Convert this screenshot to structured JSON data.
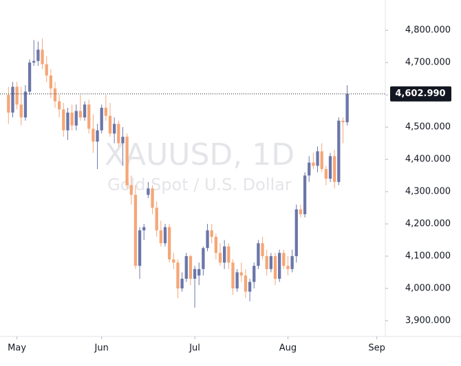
{
  "chart_data": {
    "type": "candlestick",
    "annotations": [
      "XAUUSD, 1D",
      "Gold Spot / U.S. Dollar"
    ],
    "open": [
      4600,
      4545,
      4625,
      4570,
      4530,
      4610,
      4700,
      4705,
      4740,
      4695,
      4660,
      4620,
      4580,
      4555,
      4490,
      4545,
      4505,
      4550,
      4530,
      4570,
      4495,
      4455,
      4490,
      4560,
      4535,
      4480,
      4510,
      4450,
      4470,
      4320,
      4290,
      4070,
      4180,
      4290,
      4310,
      4250,
      4180,
      4140,
      4190,
      4090,
      4080,
      4000,
      4030,
      4100,
      4030,
      4040,
      4060,
      4125,
      4180,
      4160,
      4110,
      4080,
      4130,
      4080,
      4000,
      4050,
      4040,
      3990,
      4020,
      4070,
      4140,
      4100,
      4060,
      4100,
      4030,
      4110,
      4070,
      4060,
      4100,
      4245,
      4230,
      4350,
      4390,
      4380,
      4425,
      4370,
      4340,
      4410,
      4330,
      4520,
      4515
    ],
    "high": [
      4625,
      4640,
      4640,
      4625,
      4630,
      4710,
      4770,
      4765,
      4775,
      4720,
      4680,
      4640,
      4600,
      4575,
      4560,
      4570,
      4570,
      4600,
      4580,
      4585,
      4540,
      4510,
      4570,
      4600,
      4575,
      4530,
      4520,
      4500,
      4480,
      4350,
      4320,
      4190,
      4200,
      4330,
      4320,
      4270,
      4210,
      4200,
      4200,
      4110,
      4090,
      4050,
      4110,
      4105,
      4070,
      4080,
      4130,
      4200,
      4200,
      4170,
      4140,
      4150,
      4140,
      4090,
      4060,
      4080,
      4060,
      4030,
      4080,
      4150,
      4160,
      4120,
      4110,
      4110,
      4120,
      4120,
      4100,
      4120,
      4260,
      4260,
      4360,
      4410,
      4420,
      4440,
      4450,
      4380,
      4420,
      4430,
      4530,
      4530,
      4630
    ],
    "low": [
      4510,
      4530,
      4555,
      4505,
      4520,
      4600,
      4690,
      4690,
      4680,
      4640,
      4590,
      4560,
      4530,
      4470,
      4460,
      4490,
      4490,
      4520,
      4520,
      4480,
      4420,
      4370,
      4480,
      4520,
      4470,
      4450,
      4440,
      4380,
      4310,
      4260,
      4060,
      4030,
      4150,
      4280,
      4230,
      4160,
      4130,
      4130,
      4080,
      4060,
      3970,
      3990,
      4020,
      4010,
      3940,
      4010,
      4040,
      4115,
      4140,
      4090,
      4070,
      4060,
      4060,
      3980,
      3990,
      4020,
      3970,
      3960,
      4000,
      4060,
      4090,
      4040,
      4050,
      4010,
      4020,
      4060,
      4040,
      4050,
      4080,
      4220,
      4220,
      4330,
      4370,
      4360,
      4360,
      4320,
      4330,
      4310,
      4320,
      4450,
      4505
    ],
    "close": [
      4545,
      4625,
      4570,
      4530,
      4610,
      4700,
      4705,
      4740,
      4695,
      4660,
      4620,
      4580,
      4555,
      4490,
      4545,
      4505,
      4550,
      4530,
      4570,
      4495,
      4455,
      4490,
      4560,
      4535,
      4480,
      4510,
      4450,
      4470,
      4320,
      4290,
      4070,
      4180,
      4190,
      4310,
      4250,
      4180,
      4140,
      4190,
      4090,
      4080,
      4000,
      4030,
      4100,
      4030,
      4060,
      4060,
      4125,
      4180,
      4160,
      4110,
      4080,
      4130,
      4080,
      4000,
      4050,
      4040,
      3990,
      4020,
      4070,
      4140,
      4100,
      4060,
      4100,
      4030,
      4110,
      4070,
      4060,
      4100,
      4245,
      4230,
      4350,
      4390,
      4380,
      4425,
      4370,
      4340,
      4410,
      4330,
      4520,
      4515,
      4602.99
    ],
    "up_color": "#6b76a9",
    "down_color": "#f5a677",
    "last_price": {
      "value": 4602.99,
      "label": "4,602.990"
    },
    "xlim": [
      -2,
      89
    ],
    "xticks": [
      {
        "value": 2,
        "label": "May"
      },
      {
        "value": 22,
        "label": "Jun"
      },
      {
        "value": 44,
        "label": "Jul"
      },
      {
        "value": 66,
        "label": "Aug"
      },
      {
        "value": 87,
        "label": "Sep"
      }
    ],
    "ylim": [
      3851,
      4894
    ],
    "yticks": [
      {
        "value": 3900,
        "label": "3,900.000"
      },
      {
        "value": 4000,
        "label": "4,000.000"
      },
      {
        "value": 4100,
        "label": "4,100.000"
      },
      {
        "value": 4200,
        "label": "4,200.000"
      },
      {
        "value": 4300,
        "label": "4,300.000"
      },
      {
        "value": 4400,
        "label": "4,400.000"
      },
      {
        "value": 4500,
        "label": "4,500.000"
      },
      {
        "value": 4600,
        "label": "4,600.000"
      },
      {
        "value": 4700,
        "label": "4,700.000"
      },
      {
        "value": 4800,
        "label": "4,800.000"
      }
    ]
  }
}
